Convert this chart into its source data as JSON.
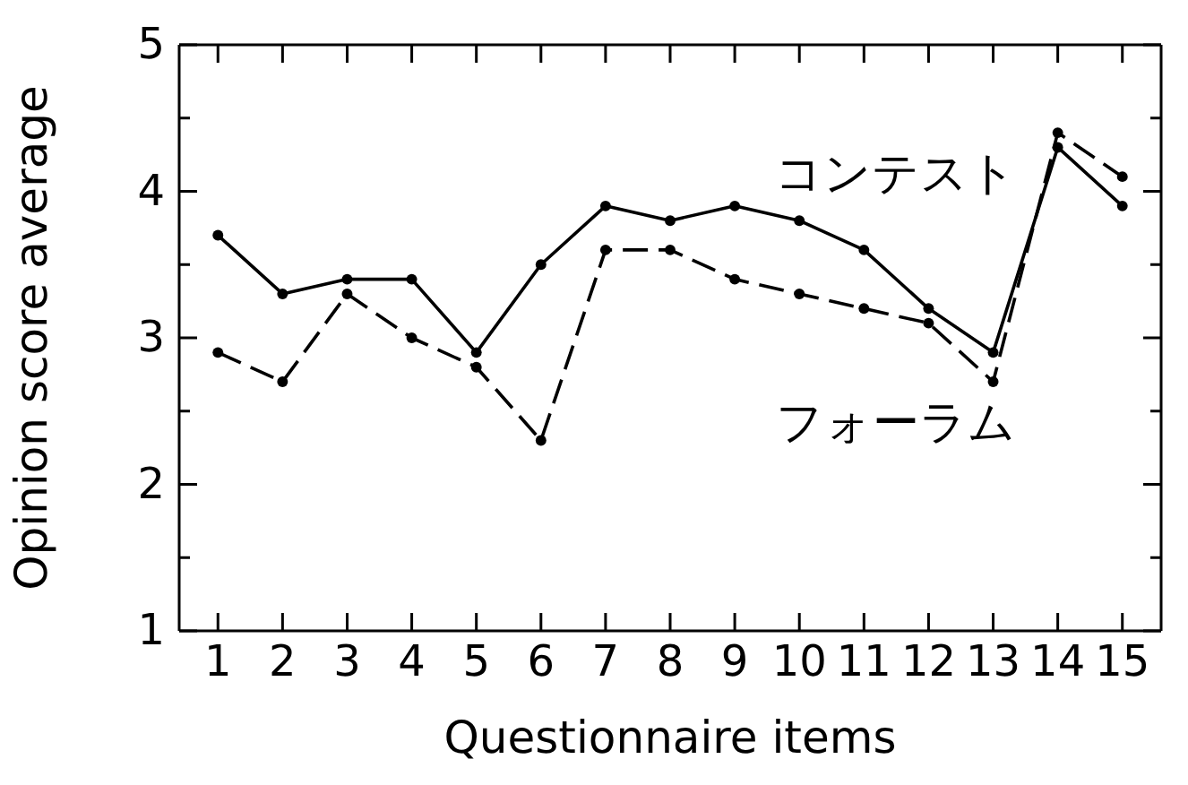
{
  "chart_data": {
    "type": "line",
    "xlabel": "Questionnaire items",
    "ylabel": "Opinion score average",
    "categories": [
      "1",
      "2",
      "3",
      "4",
      "5",
      "6",
      "7",
      "8",
      "9",
      "10",
      "11",
      "12",
      "13",
      "14",
      "15"
    ],
    "series": [
      {
        "name": "コンテスト",
        "color": "#000000",
        "line_style": "solid",
        "values": [
          3.7,
          3.3,
          3.4,
          3.4,
          2.9,
          3.5,
          3.9,
          3.8,
          3.9,
          3.8,
          3.6,
          3.2,
          2.9,
          4.3,
          3.9
        ]
      },
      {
        "name": "フォーラム",
        "color": "#000000",
        "line_style": "dashed",
        "values": [
          2.9,
          2.7,
          3.3,
          3.0,
          2.8,
          2.3,
          3.6,
          3.6,
          3.4,
          3.3,
          3.2,
          3.1,
          2.7,
          4.4,
          4.1
        ]
      }
    ],
    "ylim": [
      1,
      5
    ],
    "yticks": [
      1,
      {
        "value": 1.5,
        "label": null
      },
      2,
      {
        "value": 2.5,
        "label": null
      },
      3,
      {
        "value": 3.5,
        "label": null
      },
      4,
      {
        "value": 4.5,
        "label": null
      },
      5
    ],
    "marker": "circle",
    "legend": false,
    "grid": false
  }
}
